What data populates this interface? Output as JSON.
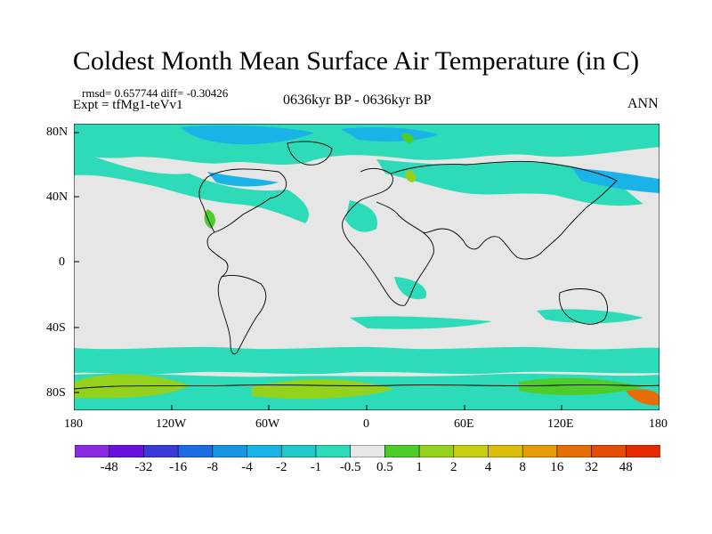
{
  "title": "Coldest Month Mean Surface Air Temperature (in C)",
  "stats": "rmsd= 0.657744 diff= -0.30426",
  "experiment": "Expt = tfMg1-teVv1",
  "period": "0636kyr BP - 0636kyr BP",
  "season": "ANN",
  "lat_labels": [
    "80N",
    "40N",
    "0",
    "40S",
    "80S"
  ],
  "lon_labels": [
    "180",
    "120W",
    "60W",
    "0",
    "60E",
    "120E",
    "180"
  ],
  "colorbar": {
    "labels": [
      "-48",
      "-32",
      "-16",
      "-8",
      "-4",
      "-2",
      "-1",
      "-0.5",
      "0.5",
      "1",
      "2",
      "4",
      "8",
      "16",
      "32",
      "48"
    ],
    "colors": [
      "#8a2be2",
      "#6a11e0",
      "#3a3ad8",
      "#1e6be6",
      "#1896e6",
      "#19b3e8",
      "#20c8cc",
      "#2ddbb8",
      "#e6e6e6",
      "#4ccd2a",
      "#94d11c",
      "#c8cf12",
      "#dcbd0a",
      "#e59a08",
      "#e66e06",
      "#e54a06",
      "#e62a06"
    ]
  },
  "colors": {
    "land_bg": "#e6e6e6",
    "cyan_light": "#2ddbb8",
    "cyan_mid": "#20c8cc",
    "blue_light": "#19b3e8",
    "green_light": "#4ccd2a",
    "green_yellow": "#94d11c",
    "coast": "#000000"
  }
}
